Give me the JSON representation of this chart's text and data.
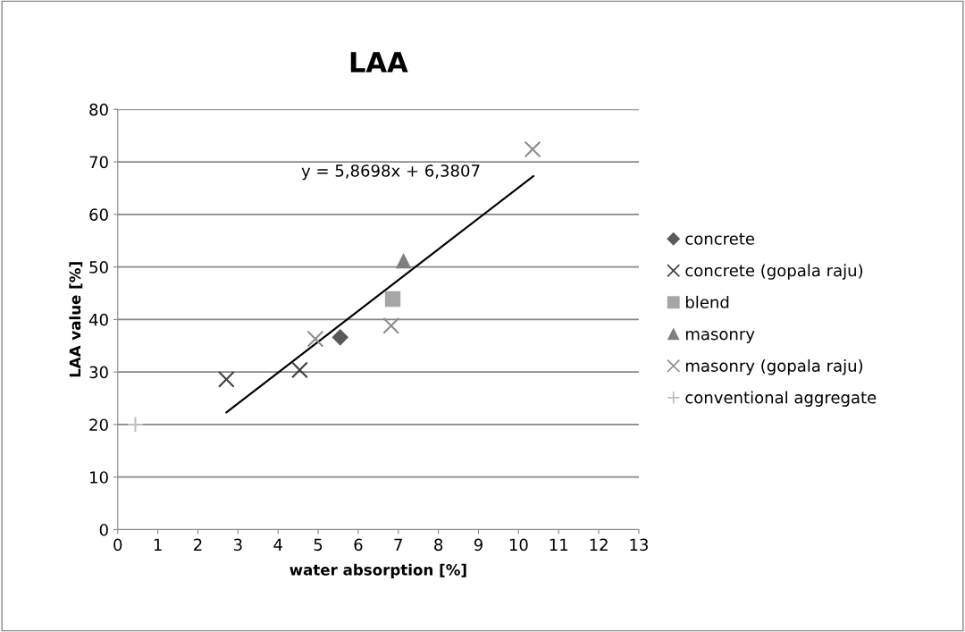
{
  "chart_data": {
    "type": "scatter",
    "title": "LAA",
    "xlabel": "water absorption [%]",
    "ylabel": "LAA value [%]",
    "xlim": [
      0,
      13
    ],
    "xticks": [
      0,
      1,
      2,
      3,
      4,
      5,
      6,
      7,
      8,
      9,
      10,
      11,
      12,
      13
    ],
    "ylim": [
      0,
      80
    ],
    "yticks": [
      0,
      10,
      20,
      30,
      40,
      50,
      60,
      70,
      80
    ],
    "grid": "y",
    "legend": "right",
    "annotations": [
      "y = 5,8698x + 6,3807"
    ],
    "series": [
      {
        "name": "concrete",
        "color": "#595959",
        "marker": "diamond",
        "x": [
          5.55
        ],
        "values": [
          36.6
        ]
      },
      {
        "name": "concrete (gopala raju)",
        "color": "#404040",
        "marker": "cross",
        "x": [
          2.71,
          4.54
        ],
        "values": [
          28.6,
          30.4
        ]
      },
      {
        "name": "blend",
        "color": "#a6a6a6",
        "marker": "square",
        "x": [
          6.86
        ],
        "values": [
          43.9
        ]
      },
      {
        "name": "masonry",
        "color": "#7f7f7f",
        "marker": "triangle",
        "x": [
          7.13
        ],
        "values": [
          51.1
        ]
      },
      {
        "name": "masonry (gopala raju)",
        "color": "#8c8c8c",
        "marker": "cross",
        "x": [
          4.93,
          6.82,
          10.35
        ],
        "values": [
          36.3,
          38.8,
          72.4
        ]
      },
      {
        "name": "conventional aggregate",
        "color": "#bfbfbf",
        "marker": "plus",
        "x": [
          0.44
        ],
        "values": [
          20
        ]
      },
      {
        "type": "line",
        "color": "#000000",
        "marker": "none",
        "x": [
          2.71,
          10.37
        ],
        "values": [
          22.3,
          67.3
        ]
      }
    ]
  }
}
